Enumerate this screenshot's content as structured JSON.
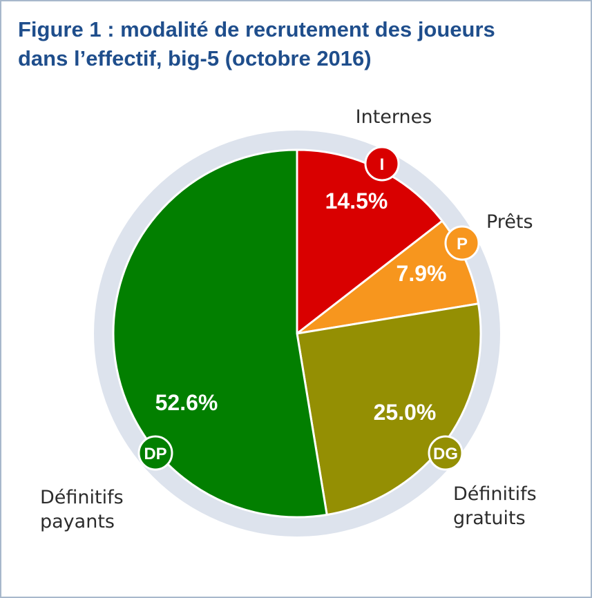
{
  "header": {
    "title_line1": "Figure 1 : modalité de recrutement des joueurs",
    "title_line2": "dans l’effectif, big-5 (octobre 2016)"
  },
  "chart_data": {
    "type": "pie",
    "title": "Figure 1 : modalité de recrutement des joueurs dans l’effectif, big-5 (octobre 2016)",
    "start": "top, clockwise",
    "slices": [
      {
        "key": "internes",
        "label_lines": [
          "Internes"
        ],
        "badge": "I",
        "value": 14.5,
        "value_label": "14.5%",
        "color": "#d90000"
      },
      {
        "key": "prets",
        "label_lines": [
          "Prêts"
        ],
        "badge": "P",
        "value": 7.9,
        "value_label": "7.9%",
        "color": "#f7961e"
      },
      {
        "key": "definitifs-gratuits",
        "label_lines": [
          "Définitifs",
          "gratuits"
        ],
        "badge": "DG",
        "value": 25.0,
        "value_label": "25.0%",
        "color": "#948f03"
      },
      {
        "key": "definitifs-payants",
        "label_lines": [
          "Définitifs",
          "payants"
        ],
        "badge": "DP",
        "value": 52.6,
        "value_label": "52.6%",
        "color": "#027f00"
      }
    ],
    "ring_color": "#dde3ed"
  }
}
